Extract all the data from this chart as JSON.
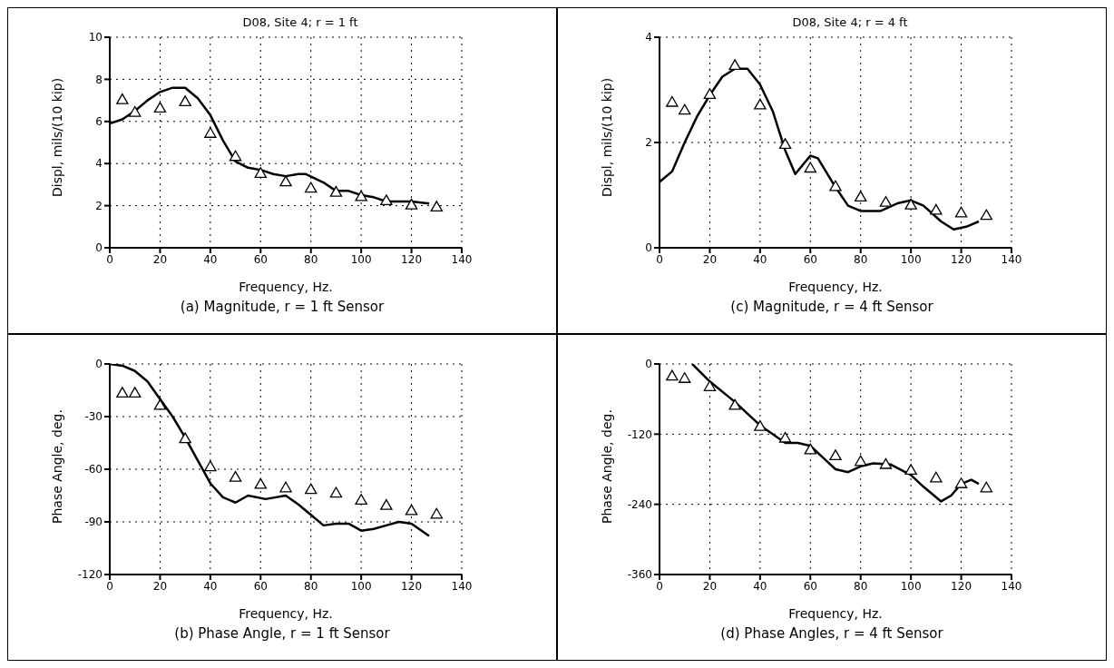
{
  "chart_data": [
    {
      "type": "line",
      "title": "D08, Site 4; r = 1 ft",
      "xlabel": "Frequency, Hz.",
      "ylabel": "Displ, mils/(10 kip)",
      "annotations": [
        "(a) Magnitude, r = 1 ft Sensor"
      ],
      "xlim": [
        0,
        140
      ],
      "xticks": [
        0,
        20,
        40,
        60,
        80,
        100,
        120,
        140
      ],
      "ylim": [
        0,
        10
      ],
      "yticks": [
        0,
        2,
        4,
        6,
        8,
        10
      ],
      "grid": true,
      "series": [
        {
          "color": "#000000",
          "marker": "none",
          "line_style": "solid",
          "x": [
            0,
            5,
            10,
            15,
            20,
            25,
            30,
            35,
            40,
            45,
            50,
            55,
            60,
            65,
            70,
            75,
            78,
            85,
            90,
            95,
            100,
            105,
            110,
            115,
            120,
            127
          ],
          "values": [
            5.9,
            6.1,
            6.5,
            7.0,
            7.4,
            7.6,
            7.6,
            7.1,
            6.3,
            5.1,
            4.1,
            3.8,
            3.7,
            3.5,
            3.4,
            3.5,
            3.5,
            3.1,
            2.7,
            2.7,
            2.5,
            2.4,
            2.2,
            2.2,
            2.2,
            2.1
          ]
        },
        {
          "type": "scatter",
          "color": "#000000",
          "marker": "triangle",
          "x": [
            5,
            10,
            20,
            30,
            40,
            50,
            60,
            70,
            80,
            90,
            100,
            110,
            120,
            130
          ],
          "values": [
            7.0,
            6.4,
            6.6,
            6.9,
            5.4,
            4.3,
            3.5,
            3.1,
            2.8,
            2.6,
            2.4,
            2.2,
            2.0,
            1.9
          ]
        }
      ]
    },
    {
      "type": "line",
      "title": "D08, Site 4; r = 4 ft",
      "xlabel": "Frequency, Hz.",
      "ylabel": "Displ, mils/(10 kip)",
      "annotations": [
        "(c) Magnitude,  r = 4 ft Sensor"
      ],
      "xlim": [
        0,
        140
      ],
      "xticks": [
        0,
        20,
        40,
        60,
        80,
        100,
        120,
        140
      ],
      "ylim": [
        0,
        4
      ],
      "yticks": [
        0,
        2,
        4
      ],
      "grid": true,
      "series": [
        {
          "color": "#000000",
          "marker": "none",
          "line_style": "solid",
          "x": [
            0,
            5,
            10,
            15,
            20,
            25,
            30,
            35,
            40,
            45,
            50,
            54,
            60,
            63,
            70,
            75,
            80,
            88,
            95,
            100,
            105,
            112,
            117,
            122,
            127
          ],
          "values": [
            1.25,
            1.45,
            2.0,
            2.5,
            2.9,
            3.25,
            3.4,
            3.4,
            3.1,
            2.6,
            1.85,
            1.4,
            1.75,
            1.7,
            1.15,
            0.8,
            0.7,
            0.7,
            0.85,
            0.9,
            0.8,
            0.5,
            0.35,
            0.4,
            0.5
          ]
        },
        {
          "type": "scatter",
          "color": "#000000",
          "marker": "triangle",
          "x": [
            5,
            10,
            20,
            30,
            40,
            50,
            60,
            70,
            80,
            90,
            100,
            110,
            120,
            130
          ],
          "values": [
            2.75,
            2.6,
            2.9,
            3.45,
            2.7,
            1.95,
            1.5,
            1.15,
            0.95,
            0.85,
            0.8,
            0.7,
            0.65,
            0.6
          ]
        }
      ]
    },
    {
      "type": "line",
      "xlabel": "Frequency, Hz.",
      "ylabel": "Phase Angle, deg.",
      "annotations": [
        "(b) Phase Angle,  r = 1 ft Sensor"
      ],
      "xlim": [
        0,
        140
      ],
      "xticks": [
        0,
        20,
        40,
        60,
        80,
        100,
        120,
        140
      ],
      "ylim": [
        -120,
        0
      ],
      "yticks": [
        -120,
        -90,
        -60,
        -30,
        0
      ],
      "grid": true,
      "series": [
        {
          "color": "#000000",
          "marker": "none",
          "line_style": "solid",
          "x": [
            0,
            5,
            10,
            15,
            20,
            25,
            30,
            35,
            40,
            45,
            50,
            55,
            62,
            70,
            75,
            80,
            85,
            90,
            95,
            100,
            105,
            110,
            115,
            120,
            127
          ],
          "values": [
            0,
            -1,
            -4,
            -10,
            -20,
            -30,
            -42,
            -55,
            -68,
            -76,
            -79,
            -75,
            -77,
            -75,
            -80,
            -86,
            -92,
            -91,
            -91,
            -95,
            -94,
            -92,
            -90,
            -91,
            -98
          ]
        },
        {
          "type": "scatter",
          "color": "#000000",
          "marker": "triangle",
          "x": [
            5,
            10,
            20,
            30,
            40,
            50,
            60,
            70,
            80,
            90,
            100,
            110,
            120,
            130
          ],
          "values": [
            -17,
            -17,
            -24,
            -43,
            -59,
            -65,
            -69,
            -71,
            -72,
            -74,
            -78,
            -81,
            -84,
            -86
          ]
        }
      ]
    },
    {
      "type": "line",
      "xlabel": "Frequency, Hz.",
      "ylabel": "Phase Angle, deg.",
      "annotations": [
        "(d) Phase Angles,  r = 4 ft Sensor"
      ],
      "xlim": [
        0,
        140
      ],
      "xticks": [
        0,
        20,
        40,
        60,
        80,
        100,
        120,
        140
      ],
      "ylim": [
        -360,
        0
      ],
      "yticks": [
        -360,
        -240,
        -120,
        0
      ],
      "grid": true,
      "series": [
        {
          "color": "#000000",
          "marker": "none",
          "line_style": "solid",
          "x": [
            13,
            20,
            30,
            40,
            45,
            50,
            55,
            60,
            65,
            70,
            75,
            80,
            85,
            92,
            100,
            105,
            112,
            116,
            120,
            124,
            127
          ],
          "values": [
            0,
            -30,
            -65,
            -105,
            -120,
            -135,
            -135,
            -140,
            -160,
            -180,
            -185,
            -175,
            -170,
            -172,
            -190,
            -210,
            -235,
            -225,
            -205,
            -198,
            -205
          ]
        },
        {
          "type": "scatter",
          "color": "#000000",
          "marker": "triangle",
          "x": [
            5,
            10,
            20,
            30,
            40,
            50,
            60,
            70,
            80,
            90,
            100,
            110,
            120,
            130
          ],
          "values": [
            -22,
            -26,
            -40,
            -72,
            -108,
            -128,
            -148,
            -158,
            -168,
            -173,
            -183,
            -196,
            -206,
            -213
          ]
        }
      ]
    }
  ]
}
